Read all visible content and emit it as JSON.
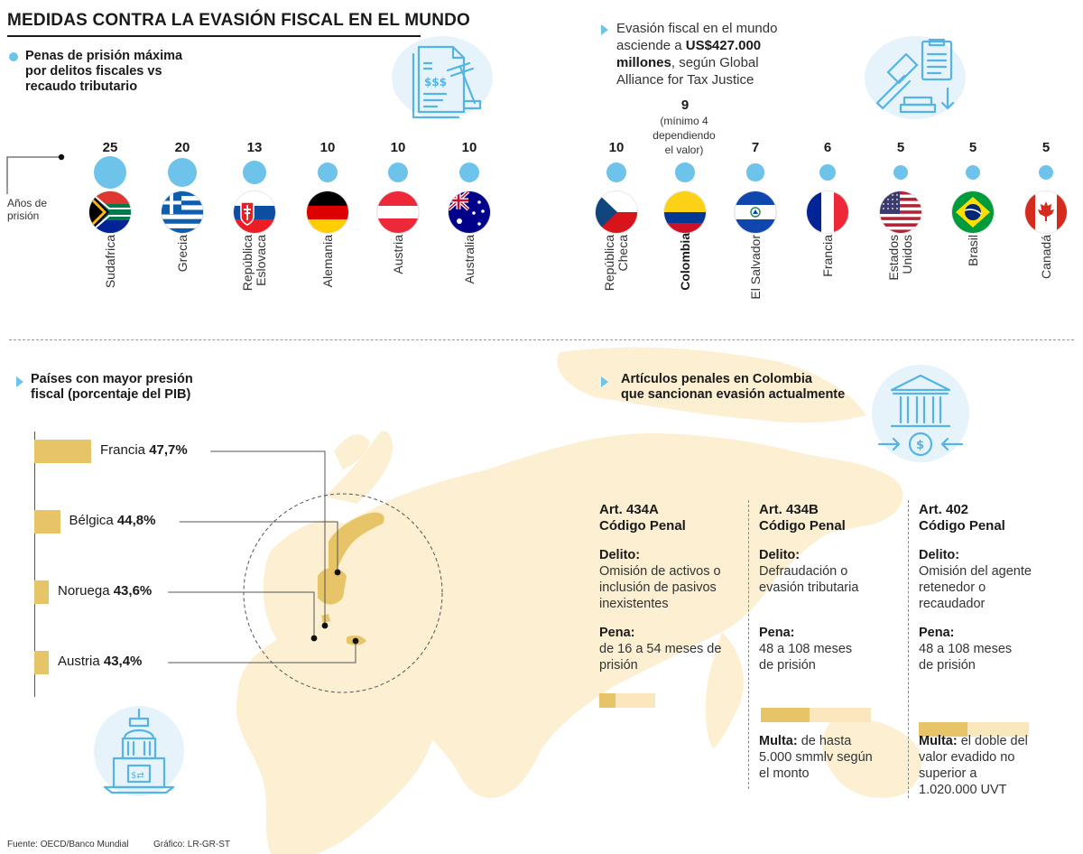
{
  "title": "MEDIDAS CONTRA LA EVASIÓN FISCAL EN EL MUNDO",
  "prison": {
    "heading": "Penas de prisión máxima por delitos fiscales vs recaudo tributario",
    "heading_lines": [
      "Penas de prisión máxima",
      "por delitos fiscales vs",
      "recaudo tributario"
    ],
    "axis_label_lines": [
      "Años de",
      "prisión"
    ],
    "note_colombia_lines": [
      "(mínimo 4",
      "dependiendo",
      "el valor)"
    ]
  },
  "evasion_note": {
    "line1": "Evasión fiscal en el mundo",
    "line2_pre": "asciende a ",
    "line2_bold": "US$427.000",
    "line3_bold": "millones",
    "line3_post": ", según Global",
    "line4": "Alliance for Tax Justice"
  },
  "pib": {
    "heading_lines": [
      "Países con mayor presión",
      "fiscal (porcentaje del PIB)"
    ]
  },
  "articles": {
    "heading_lines": [
      "Artículos penales en Colombia",
      "que sancionan evasión actualmente"
    ],
    "delito_label": "Delito:",
    "pena_label": "Pena:",
    "multa_label": "Multa:",
    "items": [
      {
        "title_lines": [
          "Art. 434A",
          "Código Penal"
        ],
        "delito_lines": [
          "Omisión de activos o",
          "inclusión de pasivos",
          "inexistentes"
        ],
        "pena_lines": [
          "de 16 a 54 meses de",
          "prisión"
        ],
        "pena_min_months": 16,
        "pena_max_months": 54,
        "multa_lines": []
      },
      {
        "title_lines": [
          "Art. 434B",
          "Código Penal"
        ],
        "delito_lines": [
          "Defraudación o",
          "evasión tributaria"
        ],
        "pena_lines": [
          "48 a 108 meses",
          "de prisión"
        ],
        "pena_min_months": 48,
        "pena_max_months": 108,
        "multa_first": " de hasta",
        "multa_lines": [
          "5.000 smmlv según",
          "el monto"
        ]
      },
      {
        "title_lines": [
          "Art. 402",
          "Código Penal"
        ],
        "delito_lines": [
          "Omisión del agente",
          "retenedor o",
          "recaudador"
        ],
        "pena_lines": [
          "48 a 108 meses",
          "de prisión"
        ],
        "pena_min_months": 48,
        "pena_max_months": 108,
        "multa_first": " el doble del",
        "multa_lines": [
          "valor evadido no",
          "superior a",
          "1.020.000 UVT"
        ]
      }
    ]
  },
  "footer": {
    "source": "Fuente: OECD/Banco Mundial",
    "credit": "Gráfico: LR-GR-ST"
  },
  "colors": {
    "bubble": "#6dc3ea",
    "bar": "#e8c468",
    "bar_light": "#fbe7bd",
    "map": "#fcefd2",
    "icon_bg": "#e6f3fb"
  },
  "icons": [
    "legal-document-icon",
    "gavel-icon",
    "bank-exchange-icon",
    "government-building-icon"
  ],
  "chart_data": [
    {
      "type": "scatter",
      "title": "Penas de prisión máxima por delitos fiscales vs recaudo tributario",
      "ylabel": "Años de prisión",
      "categories": [
        "Sudafrica",
        "Grecia",
        "República Eslovaca",
        "Alemania",
        "Austria",
        "Australia",
        "República Checa",
        "Colombia",
        "El Salvador",
        "Francia",
        "Estados Unidos",
        "Brasil",
        "Canadá"
      ],
      "category_lines": [
        [
          "Sudafrica"
        ],
        [
          "Grecia"
        ],
        [
          "República",
          "Eslovaca"
        ],
        [
          "Alemania"
        ],
        [
          "Austria"
        ],
        [
          "Australia"
        ],
        [
          "República",
          "Checa"
        ],
        [
          "Colombia"
        ],
        [
          "El Salvador"
        ],
        [
          "Francia"
        ],
        [
          "Estados",
          "Unidos"
        ],
        [
          "Brasil"
        ],
        [
          "Canadá"
        ]
      ],
      "values": [
        25,
        20,
        13,
        10,
        10,
        10,
        10,
        9,
        7,
        6,
        5,
        5,
        5
      ],
      "highlight": "Colombia"
    },
    {
      "type": "bar",
      "title": "Países con mayor presión fiscal (porcentaje del PIB)",
      "categories": [
        "Francia",
        "Bélgica",
        "Noruega",
        "Austria"
      ],
      "values": [
        47.7,
        44.8,
        43.6,
        43.4
      ],
      "value_labels": [
        "47,7%",
        "44,8%",
        "43,6%",
        "43,4%"
      ]
    }
  ]
}
